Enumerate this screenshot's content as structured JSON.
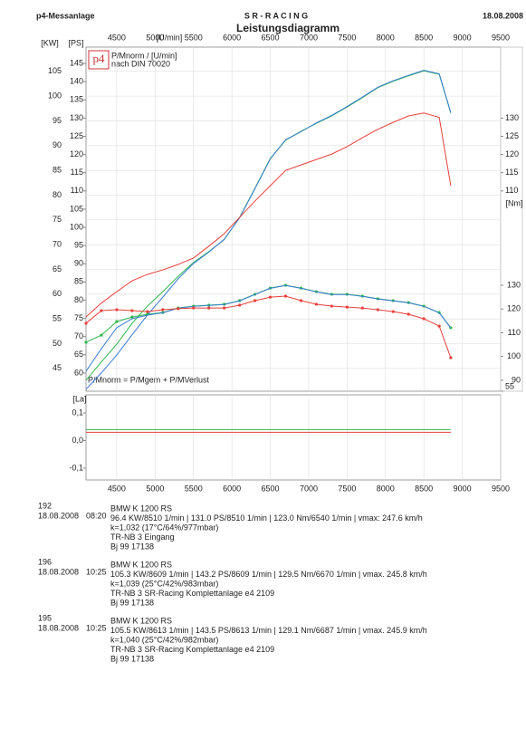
{
  "header": {
    "left": "p4-Messanlage",
    "center": "S R - R A C I N G",
    "right": "18.08.2008"
  },
  "chart_data": [
    {
      "type": "line",
      "title": "Leistungsdiagramm",
      "note": [
        "P/Mnorm / [U/min]",
        "nach DIN 70020"
      ],
      "logo": "p4",
      "formula": "P/Mnorm = P/Mgem + P/MVerlust",
      "xlabel": "[U/min]",
      "ylabel": "[KW]",
      "y2label": "[PS]",
      "y3label": "[Nm]",
      "grid": true,
      "x": [
        4100,
        4300,
        4500,
        4700,
        4900,
        5100,
        5300,
        5500,
        5700,
        5900,
        6100,
        6300,
        6500,
        6700,
        6900,
        7100,
        7300,
        7500,
        7700,
        7900,
        8100,
        8300,
        8500,
        8700,
        8850
      ],
      "xlim": [
        4100,
        9500
      ],
      "xticks": [
        4500,
        5000,
        5500,
        6000,
        6500,
        7000,
        7500,
        8000,
        8500,
        9000,
        9500
      ],
      "ylim": [
        40.4,
        109.9
      ],
      "yticks": [
        45,
        50,
        55,
        60,
        65,
        70,
        75,
        80,
        85,
        90,
        95,
        100,
        105
      ],
      "y2lim": [
        55,
        149.5
      ],
      "y2ticks": [
        60,
        65,
        70,
        75,
        80,
        85,
        90,
        95,
        100,
        105,
        110,
        115,
        120,
        125,
        130,
        135,
        140,
        145
      ],
      "y2ticks_right": [
        55,
        110,
        115,
        120,
        125,
        130
      ],
      "y3lim": [
        85.4,
        230.2
      ],
      "y3ticks": [
        90,
        100,
        110,
        120,
        130
      ],
      "series": [
        {
          "color": "#2db84a",
          "axis": "y",
          "values": [
            42.6,
            46.3,
            49.9,
            54.1,
            57.6,
            60.5,
            63.6,
            66.4,
            68.6,
            71.0,
            75.5,
            81.4,
            87.4,
            91.1,
            92.9,
            94.5,
            96.0,
            97.8,
            99.7,
            101.7,
            103.0,
            104.1,
            105.1,
            104.4,
            96.6
          ]
        },
        {
          "color": "#3a7bd5",
          "axis": "y",
          "values": [
            40.8,
            44.1,
            47.7,
            51.8,
            55.8,
            59.4,
            63.1,
            66.2,
            68.5,
            71.1,
            75.4,
            81.3,
            87.3,
            91.2,
            92.8,
            94.6,
            96.1,
            97.9,
            99.8,
            101.8,
            103.1,
            104.2,
            105.2,
            104.5,
            96.7
          ]
        },
        {
          "color": "#e8403a",
          "axis": "y",
          "values": [
            55.4,
            58.2,
            60.5,
            62.7,
            64.0,
            64.9,
            66.0,
            67.3,
            69.7,
            72.2,
            75.5,
            78.8,
            81.9,
            85.0,
            86.1,
            87.2,
            88.3,
            89.8,
            91.6,
            93.3,
            94.7,
            96.0,
            96.6,
            95.7,
            81.9
          ]
        },
        {
          "color": "#2db84a",
          "axis": "y3",
          "marker": true,
          "values": [
            106.0,
            109.0,
            114.7,
            116.6,
            117.8,
            118.5,
            120.4,
            121.2,
            121.6,
            122.0,
            123.5,
            126.2,
            128.8,
            130.0,
            128.8,
            127.3,
            126.2,
            126.2,
            125.4,
            124.3,
            123.5,
            122.7,
            121.2,
            118.5,
            112.1
          ]
        },
        {
          "color": "#3a7bd5",
          "axis": "y3",
          "marker": false,
          "values": [
            93.8,
            103.3,
            112.1,
            115.9,
            117.4,
            118.4,
            120.3,
            121.1,
            121.5,
            121.9,
            123.4,
            126.1,
            128.7,
            129.9,
            128.7,
            127.2,
            126.1,
            126.1,
            125.3,
            124.2,
            123.4,
            122.6,
            121.1,
            118.4,
            112.0
          ]
        },
        {
          "color": "#e8403a",
          "axis": "y3",
          "marker": true,
          "values": [
            114.0,
            119.3,
            119.7,
            119.3,
            118.9,
            119.7,
            120.1,
            120.4,
            120.4,
            120.4,
            121.6,
            123.5,
            125.0,
            125.4,
            123.5,
            122.0,
            121.2,
            120.8,
            120.4,
            119.7,
            118.9,
            117.8,
            115.9,
            112.8,
            99.5
          ]
        }
      ]
    },
    {
      "type": "line",
      "ylabel": "[La]",
      "x": [
        4100,
        8850
      ],
      "xlim": [
        4100,
        9500
      ],
      "xticks": [
        4500,
        5000,
        5500,
        6000,
        6500,
        7000,
        7500,
        8000,
        8500,
        9000,
        9500
      ],
      "ylim": [
        -0.143,
        0.166
      ],
      "yticks": [
        {
          "value": 0.1,
          "label": "0,1"
        },
        {
          "value": 0,
          "label": "0,0"
        },
        {
          "value": -0.1,
          "label": "-0,1"
        }
      ],
      "series": [
        {
          "color": "#2db84a",
          "values": [
            0.04,
            0.04
          ]
        },
        {
          "color": "#e8403a",
          "values": [
            0.03,
            0.03
          ]
        }
      ]
    }
  ],
  "runs": [
    {
      "id": "192",
      "date": "18.08.2008",
      "time": "08:20",
      "lines": [
        "BMW K 1200 RS",
        "96.4 KW/8510 1/min  |  131.0 PS/8510 1/min  |  123.0 Nm/6540 1/min  |  vmax: 247.6 km/h",
        "k=1,032 (17°C/64%/977mbar)",
        "TR-NB 3 Eingang",
        "Bj 99    17138"
      ]
    },
    {
      "id": "196",
      "date": "18.08.2008",
      "time": "10:25",
      "lines": [
        "BMW K 1200 RS",
        "105.3 KW/8609 1/min  |  143.2 PS/8609 1/min  |  129.5 Nm/6670 1/min  |  vmax. 245.8 km/h",
        "k=1,039 (25°C/42%/983mbar)",
        "TR-NB 3 SR-Racing Komplettanlage e4 2109",
        "Bj 99    17138"
      ]
    },
    {
      "id": "195",
      "date": "18.08.2008",
      "time": "10:25",
      "lines": [
        "BMW K 1200 RS",
        "105.5 KW/8613 1/min  |  143.5 PS/8613 1/min  |  129.1 Nm/6687 1/min  |  vmax. 245.9 km/h",
        "k=1,040 (25°C/42%/982mbar)",
        "TR-NB 3 SR-Racing Komplettanlage e4 2109",
        "Bj 99    17138"
      ]
    }
  ]
}
